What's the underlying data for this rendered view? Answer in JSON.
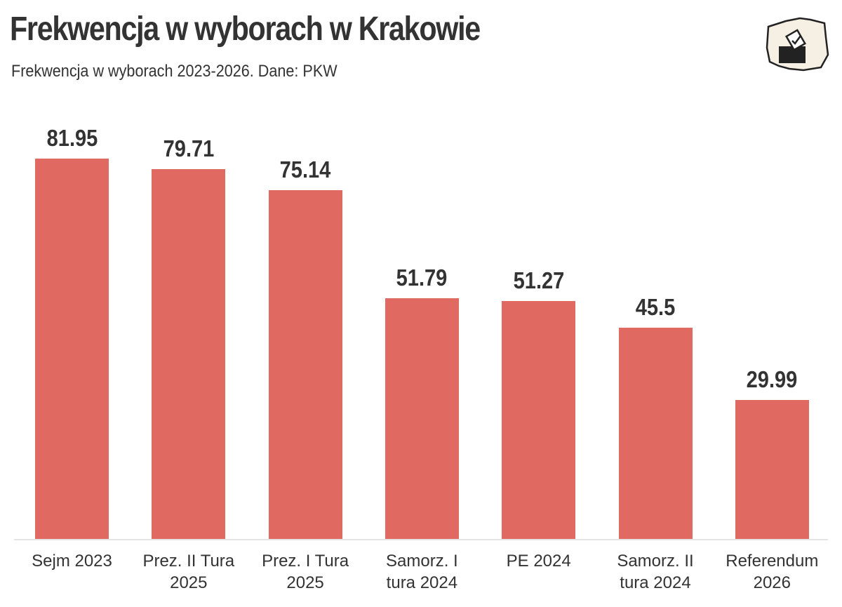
{
  "chart_data": {
    "type": "bar",
    "title": "Frekwencja w wyborach w Krakowie",
    "subtitle": "Frekwencja w wyborach 2023-2026. Dane: PKW",
    "categories": [
      "Sejm 2023",
      "Prez. II Tura 2025",
      "Prez. I Tura 2025",
      "Samorz. I tura 2024",
      "PE 2024",
      "Samorz. II tura 2024",
      "Referendum 2026"
    ],
    "values": [
      81.95,
      79.71,
      75.14,
      51.79,
      51.27,
      45.5,
      29.99
    ],
    "color": "#e06a61"
  }
}
